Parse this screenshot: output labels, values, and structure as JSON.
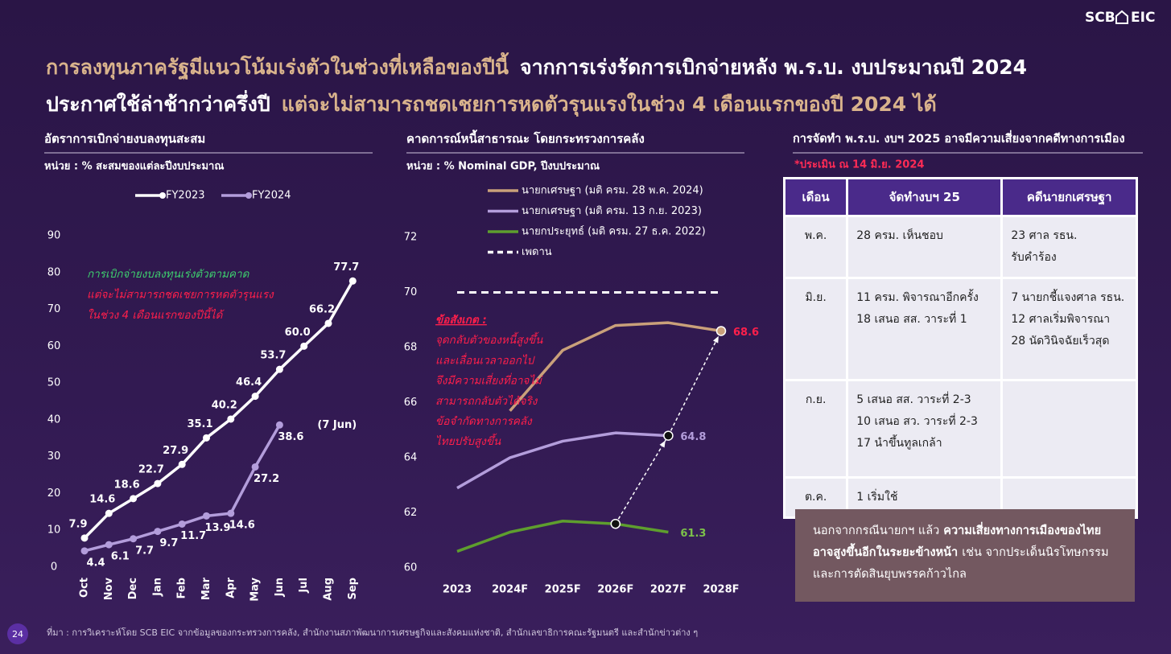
{
  "logo": {
    "left": "SCB",
    "right": "EIC"
  },
  "title_lines": [
    [
      {
        "text": "การลงทุนภาครัฐมีแนวโน้มเร่งตัวในช่วงที่เหลือของปีนี้",
        "color": "#d9b38c"
      },
      {
        "text": "จากการเร่งรัดการเบิกจ่ายหลัง พ.ร.บ. งบประมาณปี 2024",
        "color": "#ffffff"
      }
    ],
    [
      {
        "text": "ประกาศใช้ล่าช้ากว่าครึ่งปี",
        "color": "#ffffff"
      },
      {
        "text": "แต่จะไม่สามารถชดเชยการหดตัวรุนแรงในช่วง 4 เดือนแรกของปี 2024 ได้",
        "color": "#d9b38c"
      }
    ]
  ],
  "chart_data": [
    {
      "type": "line",
      "title": "อัตราการเบิกจ่ายงบลงทุนสะสม",
      "subtitle": "หน่วย : % สะสมของแต่ละปีงบประมาณ",
      "categories": [
        "Oct",
        "Nov",
        "Dec",
        "Jan",
        "Feb",
        "Mar",
        "Apr",
        "May",
        "Jun",
        "Jul",
        "Aug",
        "Sep"
      ],
      "series": [
        {
          "name": "FY2023",
          "color": "#ffffff",
          "values": [
            7.9,
            14.6,
            18.6,
            22.7,
            27.9,
            35.1,
            40.2,
            46.4,
            53.7,
            60.0,
            66.2,
            77.7
          ],
          "value_labels": [
            "7.9",
            "14.6",
            "18.6",
            "22.7",
            "27.9",
            "35.1",
            "40.2",
            "46.4",
            "53.7",
            "60.0",
            "66.2",
            "77.7"
          ]
        },
        {
          "name": "FY2024",
          "color": "#b39ddb",
          "values": [
            4.4,
            6.1,
            7.7,
            9.7,
            11.7,
            13.9,
            14.6,
            27.2,
            38.6,
            null,
            null,
            null
          ],
          "last_point_note": "(7 Jun)"
        }
      ],
      "annotations": [
        {
          "text": "การเบิกจ่ายงบลงทุนเร่งตัวตามคาด",
          "color": "#3ecf6e"
        },
        {
          "text": "แต่จะไม่สามารถชดเชยการหดตัวรุนแรง",
          "color": "#ff1f4b"
        },
        {
          "text": "ในช่วง 4 เดือนแรกของปีนี้ได้",
          "color": "#ff1f4b"
        }
      ],
      "ylim": [
        0,
        90
      ],
      "yticks": [
        0,
        10,
        20,
        30,
        40,
        50,
        60,
        70,
        80,
        90
      ],
      "legend": "top",
      "markers": true,
      "data_labels": "all"
    },
    {
      "type": "line",
      "title": "คาดการณ์หนี้สาธารณะ โดยกระทรวงการคลัง",
      "subtitle": "หน่วย : % Nominal GDP, ปีงบประมาณ",
      "categories": [
        "2023",
        "2024F",
        "2025F",
        "2026F",
        "2027F",
        "2028F"
      ],
      "series": [
        {
          "name": "นายกเศรษฐา (มติ ครม. 28 พ.ค. 2024)",
          "color": "#c9a07a",
          "label_color": "#ff1f4b",
          "values": [
            null,
            65.7,
            67.9,
            68.8,
            68.9,
            68.6
          ]
        },
        {
          "name": "นายกเศรษฐา (มติ ครม. 13 ก.ย. 2023)",
          "color": "#b39ddb",
          "label_color": "#b39ddb",
          "values": [
            62.9,
            64.0,
            64.6,
            64.9,
            64.8,
            null
          ]
        },
        {
          "name": "นายกประยุทธ์ (มติ ครม. 27 ธ.ค. 2022)",
          "color": "#5e9e2e",
          "label_color": "#7cc04a",
          "values": [
            60.6,
            61.3,
            61.7,
            61.6,
            61.3,
            null
          ]
        },
        {
          "name": "เพดาน",
          "color": "#ffffff",
          "dash": true,
          "values": [
            70,
            70,
            70,
            70,
            70,
            70
          ]
        }
      ],
      "annotations": [
        {
          "text": "ข้อสังเกต :",
          "color": "#ff1f4b"
        },
        {
          "text": "จุดกลับตัวของหนี้สูงขึ้น",
          "color": "#ff1f4b"
        },
        {
          "text": "และเลื่อนเวลาออกไป",
          "color": "#ff1f4b"
        },
        {
          "text": "จึงมีความเสี่ยงที่อาจไม่",
          "color": "#ff1f4b"
        },
        {
          "text": "สามารถกลับตัวได้จริง",
          "color": "#ff1f4b"
        },
        {
          "text": "ข้อจำกัดทางการคลัง",
          "color": "#ff1f4b"
        },
        {
          "text": "ไทยปรับสูงขึ้น",
          "color": "#ff1f4b"
        }
      ],
      "ylim": [
        60,
        72
      ],
      "yticks": [
        60,
        62,
        64,
        66,
        68,
        70,
        72
      ],
      "legend": "top-left",
      "markers": false,
      "data_labels": "last"
    }
  ],
  "panel": {
    "title": "การจัดทำ พ.ร.บ. งบฯ 2025 อาจมีความเสี่ยงจากคดีทางการเมือง",
    "note": "*ประเมิน ณ 14 มิ.ย. 2024",
    "table": {
      "headers": [
        "เดือน",
        "จัดทำงบฯ 25",
        "คดีนายกเศรษฐา"
      ],
      "rows": [
        [
          [
            "พ.ค."
          ],
          [
            "28 ครม. เห็นชอบ"
          ],
          [
            "23 ศาล รธน.",
            "รับคำร้อง"
          ]
        ],
        [
          [
            "มิ.ย."
          ],
          [
            "11 ครม. พิจารณาอีกครั้ง",
            "18 เสนอ สส. วาระที่ 1"
          ],
          [
            "7 นายกชี้แจงศาล รธน.",
            "12 ศาลเริ่มพิจารณา",
            "28 นัดวินิจฉัยเร็วสุด"
          ]
        ],
        [
          [
            "ก.ย."
          ],
          [
            "5 เสนอ สส. วาระที่ 2-3",
            "10 เสนอ สว. วาระที่ 2-3",
            "17 นำขึ้นทูลเกล้า"
          ],
          []
        ],
        [
          [
            "ต.ค."
          ],
          [
            "1 เริ่มใช้"
          ],
          []
        ]
      ]
    },
    "callout": [
      {
        "text": "นอกจากกรณีนายกฯ แล้ว",
        "bold": false
      },
      {
        "text": "ความเสี่ยงทางการเมืองของไทยอาจสูงขึ้นอีกในระยะข้างหน้า",
        "bold": true
      },
      {
        "text": "เช่น จากประเด็นนิรโทษกรรมและการตัดสินยุบพรรคก้าวไกล",
        "bold": false
      }
    ]
  },
  "footer": {
    "page": 24,
    "source": "ที่มา : การวิเคราะห์โดย SCB EIC จากข้อมูลของกระทรวงการคลัง, สำนักงานสภาพัฒนาการเศรษฐกิจและสังคมแห่งชาติ, สำนักเลขาธิการคณะรัฐมนตรี และสำนักข่าวต่าง ๆ"
  }
}
